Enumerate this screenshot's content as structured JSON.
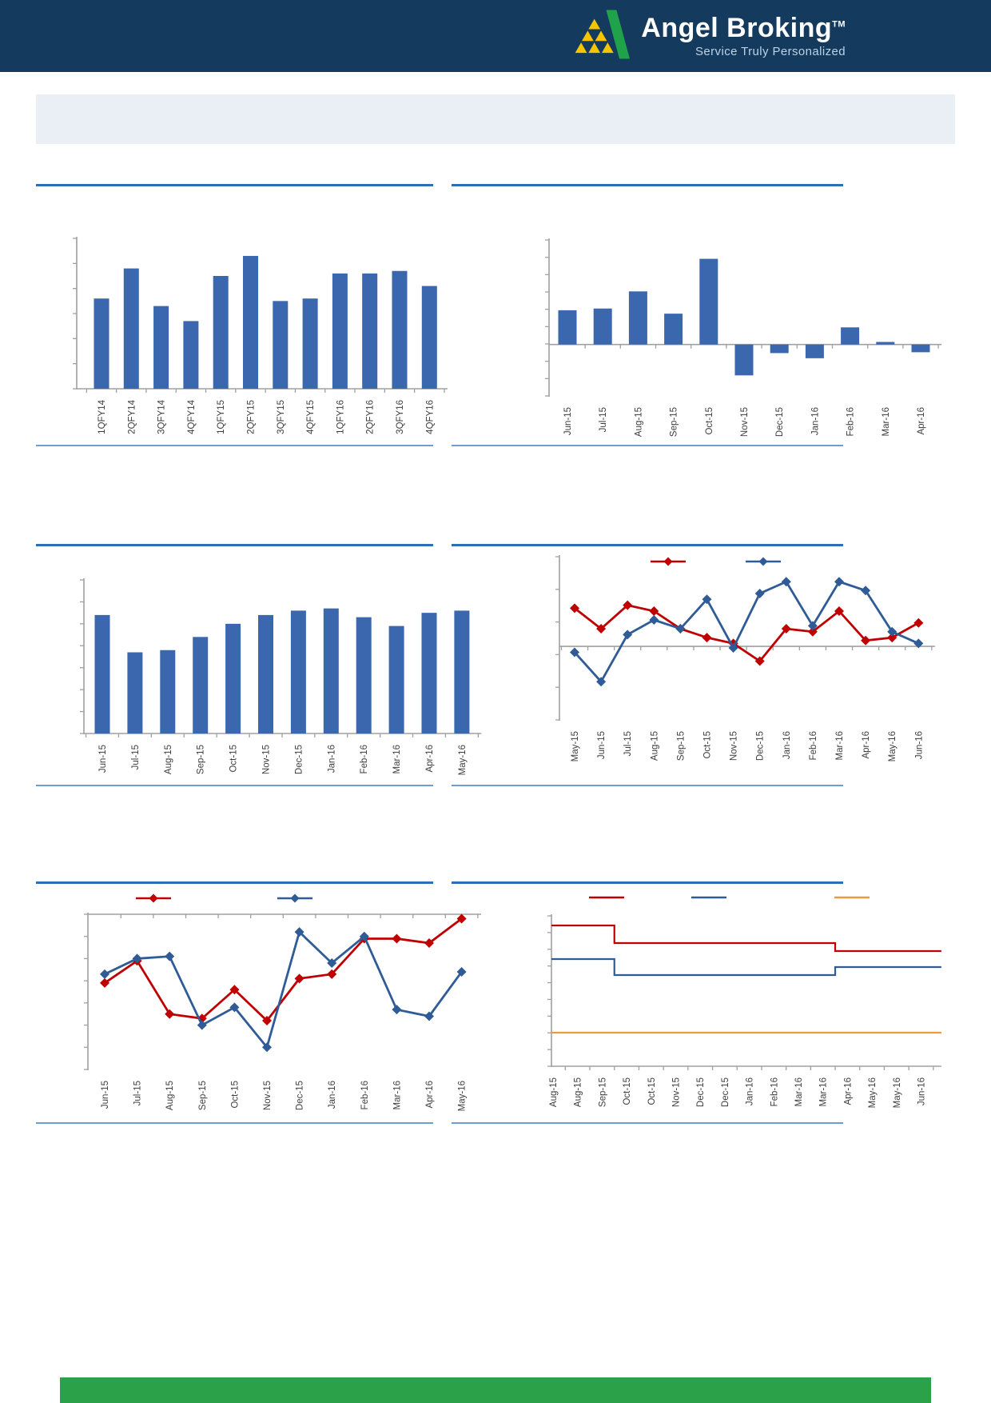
{
  "header": {
    "brand": "Angel Broking",
    "trademark": "TM",
    "tagline": "Service Truly Personalized"
  },
  "colors": {
    "header_bg": "#143A5E",
    "banner_bg": "#E9EFF4",
    "separator_top": "#2D6FB7",
    "separator_bottom": "#6D9DD1",
    "bar_blue": "#3A67AE",
    "line_red": "#C00000",
    "line_blue": "#2F5B96",
    "line_orange": "#E89A3C",
    "axis_gray": "#A0A0A0",
    "label_text": "#3D3D3D",
    "footer_green": "#2BA149",
    "logo_green": "#1FA24A",
    "logo_yellow": "#F5C500"
  },
  "chart_data": [
    {
      "type": "bar",
      "position": "top-left",
      "title": "",
      "categories": [
        "1QFY14",
        "2QFY14",
        "3QFY14",
        "4QFY14",
        "1QFY15",
        "2QFY15",
        "3QFY15",
        "4QFY15",
        "1QFY16",
        "2QFY16",
        "3QFY16",
        "4QFY16"
      ],
      "values": [
        3.6,
        4.8,
        3.3,
        2.7,
        4.5,
        5.3,
        3.5,
        3.6,
        4.6,
        4.6,
        4.7,
        4.1
      ],
      "ylim": [
        0,
        6
      ],
      "grid": false,
      "axis_value_labels_visible": false,
      "bar_color_key": "bar_blue"
    },
    {
      "type": "bar",
      "position": "top-right",
      "title": "",
      "categories": [
        "Jun-15",
        "Jul-15",
        "Aug-15",
        "Sep-15",
        "Oct-15",
        "Nov-15",
        "Dec-15",
        "Jan-16",
        "Feb-16",
        "Mar-16",
        "Apr-16"
      ],
      "values": [
        2.0,
        2.1,
        3.1,
        1.8,
        5.0,
        -1.8,
        -0.5,
        -0.8,
        1.0,
        0.15,
        -0.45
      ],
      "ylim": [
        -3,
        6.1
      ],
      "grid": false,
      "axis_value_labels_visible": false,
      "bar_color_key": "bar_blue"
    },
    {
      "type": "bar",
      "position": "middle-left",
      "title": "",
      "categories": [
        "Jun-15",
        "Jul-15",
        "Aug-15",
        "Sep-15",
        "Oct-15",
        "Nov-15",
        "Dec-15",
        "Jan-16",
        "Feb-16",
        "Mar-16",
        "Apr-16",
        "May-16"
      ],
      "values": [
        5.4,
        3.7,
        3.8,
        4.4,
        5.0,
        5.4,
        5.6,
        5.7,
        5.3,
        4.9,
        5.5,
        5.6
      ],
      "ylim": [
        0,
        7
      ],
      "grid": false,
      "axis_value_labels_visible": false,
      "bar_color_key": "bar_blue"
    },
    {
      "type": "line",
      "position": "middle-right",
      "title": "",
      "categories": [
        "May-15",
        "Jun-15",
        "Jul-15",
        "Aug-15",
        "Sep-15",
        "Oct-15",
        "Nov-15",
        "Dec-15",
        "Jan-16",
        "Feb-16",
        "Mar-16",
        "Apr-16",
        "May-16",
        "Jun-16"
      ],
      "series": [
        {
          "name": "red-series",
          "color_key": "line_red",
          "values": [
            1.3,
            0.6,
            1.4,
            1.2,
            0.6,
            0.3,
            0.1,
            -0.5,
            0.6,
            0.5,
            1.2,
            0.2,
            0.3,
            0.8
          ]
        },
        {
          "name": "blue-series",
          "color_key": "line_blue",
          "values": [
            -0.2,
            -1.2,
            0.4,
            0.9,
            0.6,
            1.6,
            -0.05,
            1.8,
            2.2,
            0.7,
            2.2,
            1.9,
            0.5,
            0.1
          ]
        }
      ],
      "ylim": [
        -2.5,
        3.05
      ],
      "legend_position": "top",
      "legend_labels_visible": false,
      "grid": false
    },
    {
      "type": "line",
      "position": "bottom-left",
      "title": "",
      "categories": [
        "Jun-15",
        "Jul-15",
        "Aug-15",
        "Sep-15",
        "Oct-15",
        "Nov-15",
        "Dec-15",
        "Jan-16",
        "Feb-16",
        "Mar-16",
        "Apr-16",
        "May-16"
      ],
      "series": [
        {
          "name": "red-series",
          "color_key": "line_red",
          "values": [
            -3.1,
            -2.1,
            -4.5,
            -4.7,
            -3.4,
            -4.8,
            -2.9,
            -2.7,
            -1.1,
            -1.1,
            -1.3,
            -0.2
          ]
        },
        {
          "name": "blue-series",
          "color_key": "line_blue",
          "values": [
            -2.7,
            -2.0,
            -1.9,
            -5.0,
            -4.2,
            -6.0,
            -0.8,
            -2.2,
            -1.0,
            -4.3,
            -4.6,
            -2.6
          ]
        }
      ],
      "ylim": [
        -7,
        0
      ],
      "legend_position": "top",
      "legend_labels_visible": false,
      "grid": false
    },
    {
      "type": "step-line",
      "position": "bottom-right",
      "title": "",
      "categories": [
        "Aug-15",
        "Aug-15",
        "Sep-15",
        "Oct-15",
        "Oct-15",
        "Nov-15",
        "Dec-15",
        "Dec-15",
        "Jan-16",
        "Feb-16",
        "Mar-16",
        "Mar-16",
        "Apr-16",
        "May-16",
        "May-16",
        "Jun-16"
      ],
      "series": [
        {
          "name": "red-series",
          "color_key": "line_red",
          "values": [
            8.8,
            8.8,
            8.8,
            7.7,
            7.7,
            7.7,
            7.7,
            7.7,
            7.7,
            7.7,
            7.7,
            7.7,
            7.2,
            7.2,
            7.2,
            7.2
          ]
        },
        {
          "name": "blue-series",
          "color_key": "line_blue",
          "values": [
            6.7,
            6.7,
            6.7,
            5.7,
            5.7,
            5.7,
            5.7,
            5.7,
            5.7,
            5.7,
            5.7,
            5.7,
            6.2,
            6.2,
            6.2,
            6.2
          ]
        },
        {
          "name": "orange-series",
          "color_key": "line_orange",
          "values": [
            2.1,
            2.1,
            2.1,
            2.1,
            2.1,
            2.1,
            2.1,
            2.1,
            2.1,
            2.1,
            2.1,
            2.1,
            2.1,
            2.1,
            2.1,
            2.1
          ]
        }
      ],
      "ylim": [
        0,
        9.4
      ],
      "legend_position": "top",
      "legend_labels_visible": false,
      "grid": false
    }
  ]
}
